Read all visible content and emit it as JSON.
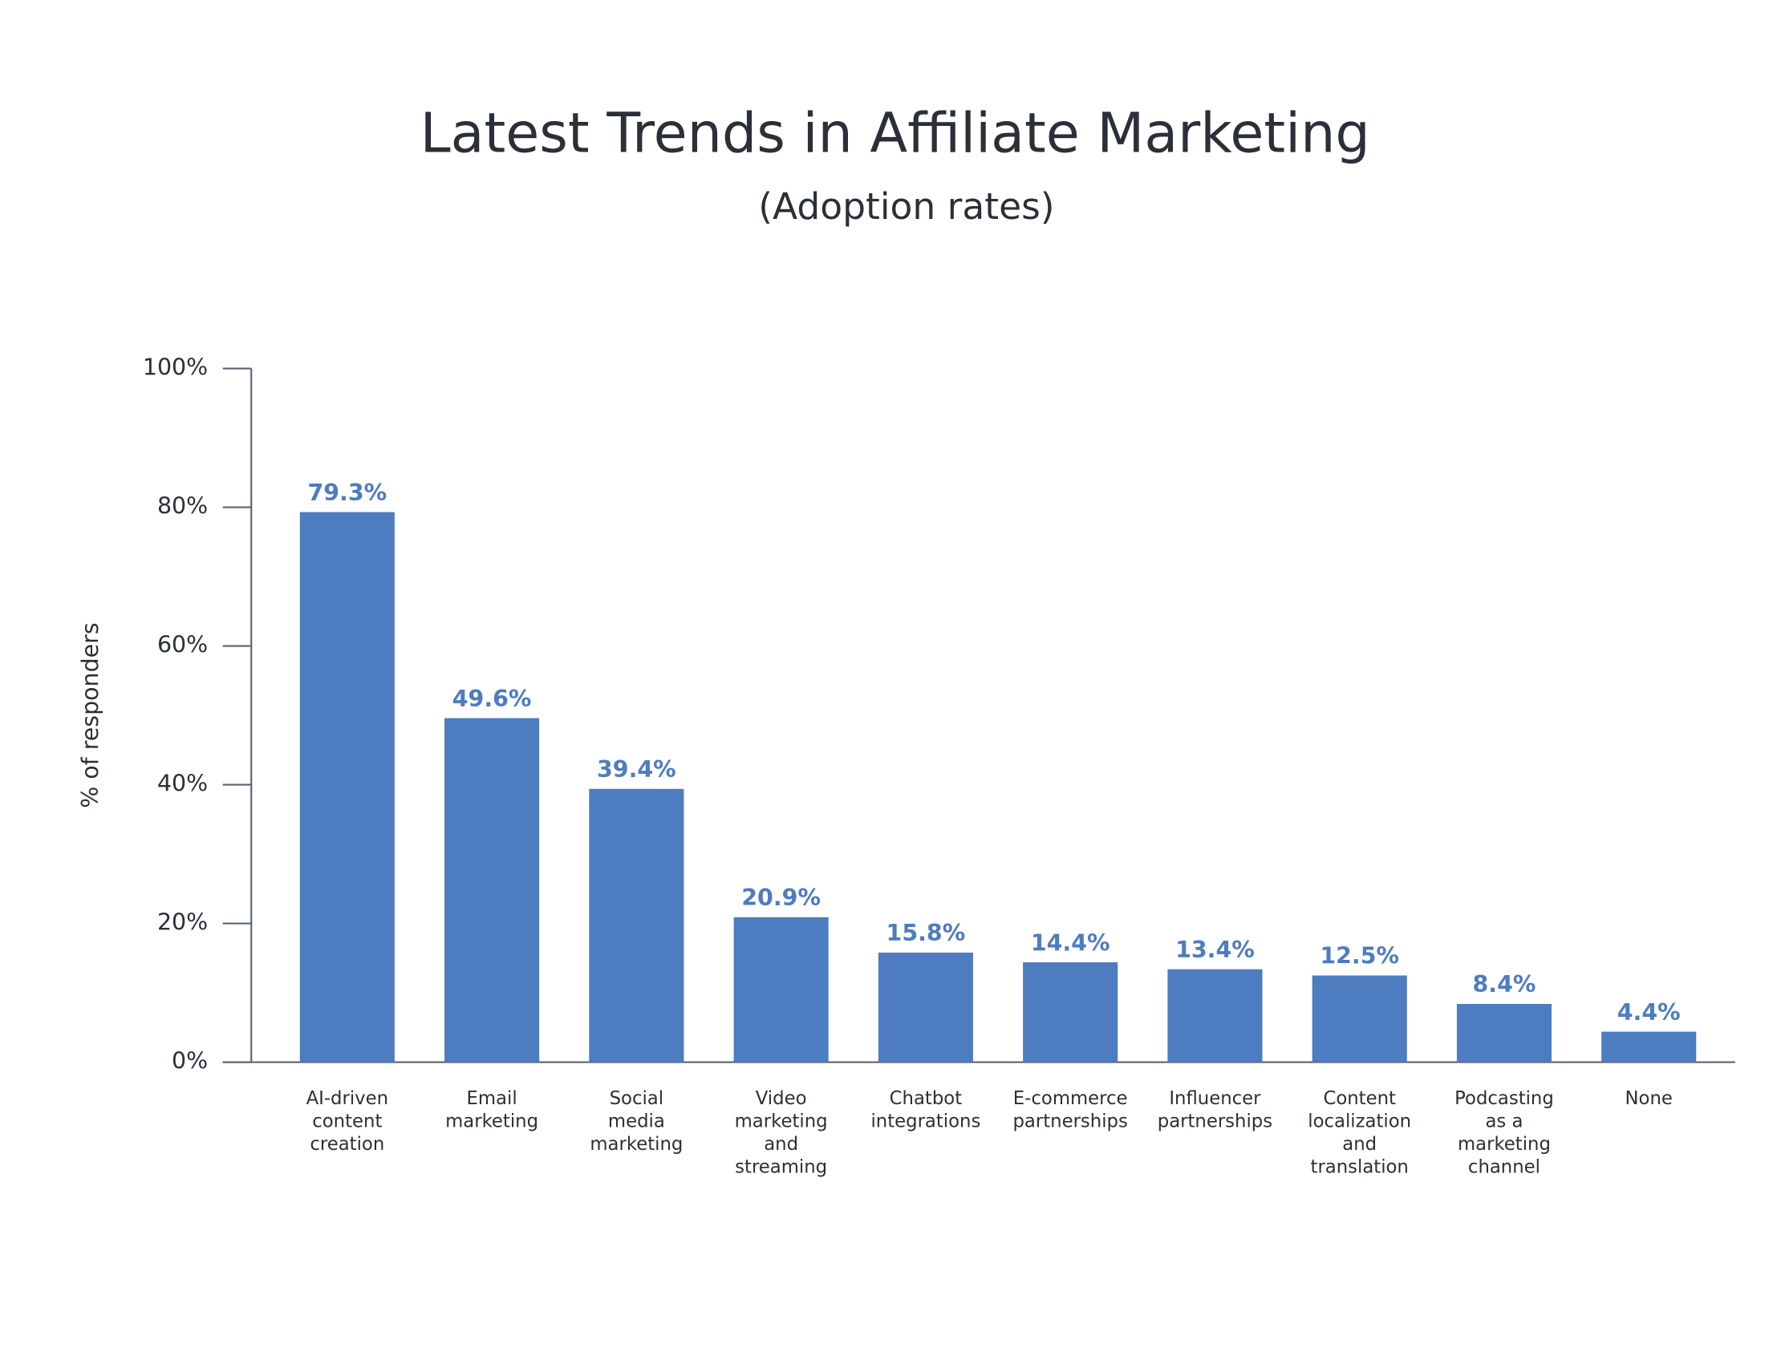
{
  "chart_data": {
    "type": "bar",
    "title": "Latest Trends in Affiliate Marketing",
    "subtitle": "(Adoption rates)",
    "y_label": "% of responders",
    "categories": [
      "AI-driven\ncontent\ncreation",
      "Email\nmarketing",
      "Social\nmedia\nmarketing",
      "Video\nmarketing\nand\nstreaming",
      "Chatbot\nintegrations",
      "E-commerce\npartnerships",
      "Influencer\npartnerships",
      "Content\nlocalization\nand\ntranslation",
      "Podcasting\nas a\nmarketing\nchannel",
      "None"
    ],
    "values": [
      79.3,
      49.6,
      39.4,
      20.9,
      15.8,
      14.4,
      13.4,
      12.5,
      8.4,
      4.4
    ],
    "value_labels": [
      "79.3%",
      "49.6%",
      "39.4%",
      "20.9%",
      "15.8%",
      "14.4%",
      "13.4%",
      "12.5%",
      "8.4%",
      "4.4%"
    ],
    "color": "#4d7cc0",
    "ylim": [
      0,
      100
    ],
    "yticks": [
      {
        "value": 0,
        "label": "0%"
      },
      {
        "value": 20,
        "label": "20%"
      },
      {
        "value": 40,
        "label": "40%"
      },
      {
        "value": 60,
        "label": "60%"
      },
      {
        "value": 80,
        "label": "80%"
      },
      {
        "value": 100,
        "label": "100%"
      }
    ]
  }
}
